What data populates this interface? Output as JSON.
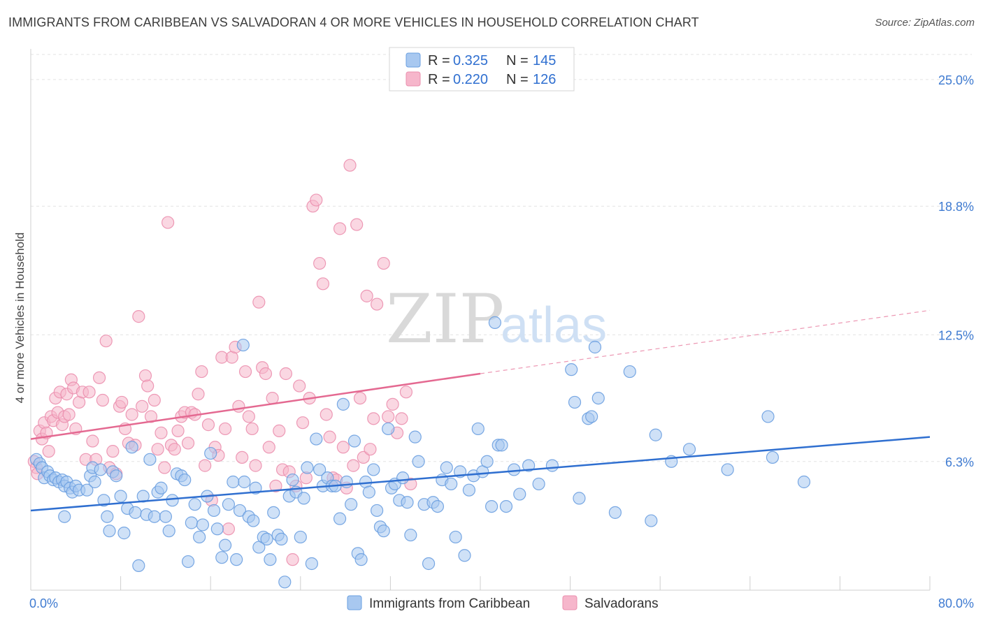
{
  "title": "IMMIGRANTS FROM CARIBBEAN VS SALVADORAN 4 OR MORE VEHICLES IN HOUSEHOLD CORRELATION CHART",
  "source": "Source: ZipAtlas.com",
  "watermark": {
    "zip": "ZIP",
    "atlas": "atlas"
  },
  "legend": {
    "rows": [
      {
        "r_label": "R =",
        "r_value": "0.325",
        "n_label": "N =",
        "n_value": "145",
        "color": "#a8c8f0"
      },
      {
        "r_label": "R =",
        "r_value": "0.220",
        "n_label": "N =",
        "n_value": "126",
        "color": "#f6b6cb"
      }
    ]
  },
  "chart_data": {
    "type": "scatter",
    "title": "IMMIGRANTS FROM CARIBBEAN VS SALVADORAN 4 OR MORE VEHICLES IN HOUSEHOLD CORRELATION CHART",
    "xlabel": "",
    "ylabel": "4 or more Vehicles in Household",
    "xlim": [
      0,
      80
    ],
    "ylim": [
      0,
      26.5
    ],
    "x_tick_labels": [
      "0.0%",
      "80.0%"
    ],
    "y_ticks": [
      6.3,
      12.5,
      18.8,
      25.0
    ],
    "y_tick_labels": [
      "6.3%",
      "12.5%",
      "18.8%",
      "25.0%"
    ],
    "grid": "horizontal dashed",
    "legend_placement": "top-center",
    "series": [
      {
        "name": "Immigrants from Caribbean",
        "color": "#6a9fe0",
        "fill": "#a8c8f0",
        "trend": {
          "x": [
            0,
            80
          ],
          "y": [
            3.9,
            7.5
          ],
          "color": "#2f6fd0"
        },
        "points": [
          [
            0.5,
            6.4
          ],
          [
            0.8,
            6.2
          ],
          [
            1.0,
            6.0
          ],
          [
            1.2,
            5.5
          ],
          [
            1.5,
            5.8
          ],
          [
            1.7,
            5.6
          ],
          [
            2.0,
            5.4
          ],
          [
            2.2,
            5.5
          ],
          [
            2.5,
            5.3
          ],
          [
            2.8,
            5.4
          ],
          [
            3.0,
            5.1
          ],
          [
            3.2,
            5.3
          ],
          [
            3.5,
            5.0
          ],
          [
            3.7,
            4.8
          ],
          [
            3.0,
            3.6
          ],
          [
            4.0,
            5.1
          ],
          [
            4.3,
            4.9
          ],
          [
            5.0,
            4.9
          ],
          [
            5.3,
            5.6
          ],
          [
            5.5,
            6.0
          ],
          [
            5.7,
            5.3
          ],
          [
            6.2,
            5.9
          ],
          [
            6.5,
            4.4
          ],
          [
            6.8,
            3.6
          ],
          [
            7.0,
            2.9
          ],
          [
            7.3,
            5.8
          ],
          [
            7.6,
            5.6
          ],
          [
            8.0,
            4.6
          ],
          [
            8.3,
            2.8
          ],
          [
            8.6,
            4.0
          ],
          [
            9.0,
            7.0
          ],
          [
            9.3,
            3.8
          ],
          [
            9.6,
            1.2
          ],
          [
            10.0,
            4.6
          ],
          [
            10.3,
            3.7
          ],
          [
            10.6,
            6.4
          ],
          [
            11.0,
            3.6
          ],
          [
            11.3,
            4.8
          ],
          [
            11.6,
            5.0
          ],
          [
            12.0,
            3.6
          ],
          [
            12.3,
            2.9
          ],
          [
            12.6,
            4.4
          ],
          [
            13.0,
            5.7
          ],
          [
            13.4,
            5.6
          ],
          [
            13.7,
            5.4
          ],
          [
            14.0,
            1.4
          ],
          [
            14.3,
            3.3
          ],
          [
            14.6,
            4.2
          ],
          [
            15.0,
            2.6
          ],
          [
            15.3,
            3.2
          ],
          [
            15.7,
            4.6
          ],
          [
            16.0,
            6.7
          ],
          [
            16.3,
            3.9
          ],
          [
            16.6,
            3.0
          ],
          [
            17.0,
            1.6
          ],
          [
            17.3,
            2.2
          ],
          [
            17.6,
            4.2
          ],
          [
            18.0,
            5.3
          ],
          [
            18.3,
            1.5
          ],
          [
            18.6,
            3.9
          ],
          [
            18.9,
            12.0
          ],
          [
            19.0,
            5.3
          ],
          [
            19.4,
            3.6
          ],
          [
            19.8,
            3.4
          ],
          [
            20.0,
            5.0
          ],
          [
            20.3,
            2.1
          ],
          [
            20.7,
            2.6
          ],
          [
            21.0,
            2.5
          ],
          [
            21.3,
            1.5
          ],
          [
            21.6,
            3.8
          ],
          [
            22.0,
            2.7
          ],
          [
            22.3,
            2.5
          ],
          [
            22.6,
            0.4
          ],
          [
            23.0,
            4.6
          ],
          [
            23.3,
            5.4
          ],
          [
            23.6,
            4.8
          ],
          [
            24.0,
            2.6
          ],
          [
            24.3,
            4.5
          ],
          [
            24.6,
            6.0
          ],
          [
            25.0,
            1.3
          ],
          [
            25.4,
            7.4
          ],
          [
            25.7,
            5.9
          ],
          [
            26.0,
            5.1
          ],
          [
            26.4,
            5.5
          ],
          [
            26.8,
            5.1
          ],
          [
            27.1,
            5.1
          ],
          [
            27.5,
            3.5
          ],
          [
            27.8,
            9.1
          ],
          [
            28.1,
            5.3
          ],
          [
            28.5,
            4.2
          ],
          [
            28.8,
            7.3
          ],
          [
            29.1,
            1.8
          ],
          [
            29.4,
            1.5
          ],
          [
            29.8,
            5.3
          ],
          [
            30.1,
            4.8
          ],
          [
            30.5,
            5.9
          ],
          [
            30.8,
            3.9
          ],
          [
            31.1,
            3.1
          ],
          [
            31.4,
            2.9
          ],
          [
            31.8,
            7.9
          ],
          [
            32.1,
            5.0
          ],
          [
            32.4,
            5.2
          ],
          [
            32.8,
            4.4
          ],
          [
            33.1,
            5.5
          ],
          [
            33.5,
            4.3
          ],
          [
            33.8,
            2.7
          ],
          [
            34.2,
            7.5
          ],
          [
            34.5,
            6.3
          ],
          [
            35.0,
            4.2
          ],
          [
            35.4,
            1.3
          ],
          [
            35.8,
            4.3
          ],
          [
            36.2,
            4.1
          ],
          [
            36.6,
            5.4
          ],
          [
            37.0,
            6.0
          ],
          [
            37.4,
            5.2
          ],
          [
            37.8,
            2.6
          ],
          [
            38.2,
            5.8
          ],
          [
            38.6,
            1.7
          ],
          [
            39.0,
            4.9
          ],
          [
            39.4,
            5.6
          ],
          [
            39.8,
            7.9
          ],
          [
            40.2,
            5.8
          ],
          [
            40.6,
            6.3
          ],
          [
            41.0,
            4.1
          ],
          [
            41.3,
            13.1
          ],
          [
            41.6,
            7.1
          ],
          [
            41.9,
            7.1
          ],
          [
            42.3,
            4.1
          ],
          [
            43.0,
            5.9
          ],
          [
            43.5,
            4.7
          ],
          [
            44.3,
            6.1
          ],
          [
            45.2,
            5.2
          ],
          [
            46.4,
            6.1
          ],
          [
            48.1,
            10.8
          ],
          [
            48.4,
            9.2
          ],
          [
            48.8,
            4.5
          ],
          [
            49.6,
            8.4
          ],
          [
            49.9,
            8.5
          ],
          [
            50.2,
            11.9
          ],
          [
            50.5,
            9.4
          ],
          [
            52.0,
            3.8
          ],
          [
            53.3,
            10.7
          ],
          [
            55.2,
            3.4
          ],
          [
            55.6,
            7.6
          ],
          [
            57.0,
            6.3
          ],
          [
            58.6,
            6.9
          ],
          [
            62.0,
            5.9
          ],
          [
            65.6,
            8.5
          ],
          [
            66.0,
            6.5
          ],
          [
            68.8,
            5.3
          ]
        ]
      },
      {
        "name": "Salvadorans",
        "color": "#eb8fae",
        "fill": "#f6b6cb",
        "trend": {
          "x": [
            0,
            40
          ],
          "y": [
            7.4,
            10.6
          ],
          "color": "#e46991",
          "dashed_to": [
            80,
            13.7
          ]
        },
        "points": [
          [
            0.3,
            6.3
          ],
          [
            0.5,
            6.0
          ],
          [
            0.6,
            5.7
          ],
          [
            0.8,
            7.8
          ],
          [
            1.0,
            7.4
          ],
          [
            1.2,
            8.2
          ],
          [
            1.4,
            7.7
          ],
          [
            1.6,
            6.8
          ],
          [
            1.8,
            8.5
          ],
          [
            2.0,
            8.3
          ],
          [
            2.2,
            9.4
          ],
          [
            2.4,
            8.7
          ],
          [
            2.6,
            9.7
          ],
          [
            2.8,
            8.1
          ],
          [
            3.0,
            8.5
          ],
          [
            3.2,
            9.6
          ],
          [
            3.4,
            8.6
          ],
          [
            3.6,
            10.3
          ],
          [
            3.8,
            9.9
          ],
          [
            4.0,
            7.9
          ],
          [
            4.3,
            9.2
          ],
          [
            4.6,
            9.7
          ],
          [
            4.9,
            6.4
          ],
          [
            5.2,
            9.7
          ],
          [
            5.5,
            7.3
          ],
          [
            5.8,
            6.4
          ],
          [
            6.1,
            10.4
          ],
          [
            6.4,
            9.3
          ],
          [
            6.7,
            12.2
          ],
          [
            7.0,
            6.0
          ],
          [
            7.3,
            6.8
          ],
          [
            7.6,
            5.7
          ],
          [
            7.9,
            9.0
          ],
          [
            8.1,
            9.2
          ],
          [
            8.4,
            7.9
          ],
          [
            8.7,
            7.2
          ],
          [
            9.0,
            8.6
          ],
          [
            9.3,
            7.1
          ],
          [
            9.6,
            13.4
          ],
          [
            9.9,
            9.0
          ],
          [
            10.2,
            10.5
          ],
          [
            10.4,
            10.0
          ],
          [
            10.7,
            8.5
          ],
          [
            11.0,
            9.3
          ],
          [
            11.3,
            6.9
          ],
          [
            11.6,
            7.7
          ],
          [
            11.9,
            6.0
          ],
          [
            12.2,
            18.0
          ],
          [
            12.5,
            7.1
          ],
          [
            12.8,
            6.9
          ],
          [
            13.1,
            7.8
          ],
          [
            13.4,
            8.5
          ],
          [
            13.7,
            8.7
          ],
          [
            14.0,
            7.2
          ],
          [
            14.3,
            8.7
          ],
          [
            14.6,
            8.6
          ],
          [
            14.9,
            9.6
          ],
          [
            15.2,
            10.7
          ],
          [
            15.5,
            6.1
          ],
          [
            15.8,
            8.1
          ],
          [
            16.1,
            4.4
          ],
          [
            16.4,
            7.0
          ],
          [
            16.7,
            6.6
          ],
          [
            17.0,
            11.4
          ],
          [
            17.3,
            7.9
          ],
          [
            17.6,
            3.0
          ],
          [
            17.9,
            11.4
          ],
          [
            18.2,
            11.9
          ],
          [
            18.5,
            9.0
          ],
          [
            18.8,
            6.5
          ],
          [
            19.1,
            10.7
          ],
          [
            19.4,
            8.5
          ],
          [
            19.7,
            7.9
          ],
          [
            20.0,
            6.1
          ],
          [
            20.3,
            14.1
          ],
          [
            20.6,
            10.9
          ],
          [
            20.9,
            10.6
          ],
          [
            21.2,
            7.0
          ],
          [
            21.5,
            9.4
          ],
          [
            21.8,
            5.1
          ],
          [
            22.1,
            7.8
          ],
          [
            22.4,
            5.9
          ],
          [
            22.7,
            10.6
          ],
          [
            23.0,
            5.8
          ],
          [
            23.3,
            1.5
          ],
          [
            23.6,
            5.1
          ],
          [
            23.9,
            10.0
          ],
          [
            24.2,
            8.2
          ],
          [
            24.5,
            5.5
          ],
          [
            24.8,
            9.4
          ],
          [
            25.1,
            18.8
          ],
          [
            25.4,
            19.1
          ],
          [
            25.7,
            16.0
          ],
          [
            26.0,
            15.0
          ],
          [
            26.3,
            8.6
          ],
          [
            26.6,
            7.5
          ],
          [
            26.9,
            5.5
          ],
          [
            27.2,
            5.4
          ],
          [
            27.5,
            17.7
          ],
          [
            27.8,
            7.0
          ],
          [
            28.1,
            5.0
          ],
          [
            28.4,
            20.8
          ],
          [
            28.7,
            6.1
          ],
          [
            29.0,
            17.9
          ],
          [
            29.3,
            9.4
          ],
          [
            29.6,
            6.5
          ],
          [
            29.9,
            14.4
          ],
          [
            30.2,
            6.9
          ],
          [
            30.5,
            8.4
          ],
          [
            30.8,
            14.0
          ],
          [
            31.4,
            16.0
          ],
          [
            31.8,
            8.5
          ],
          [
            32.2,
            9.1
          ],
          [
            32.6,
            7.7
          ],
          [
            33.0,
            8.4
          ],
          [
            33.4,
            9.7
          ],
          [
            33.8,
            5.2
          ]
        ]
      }
    ]
  },
  "bottom_legend": [
    {
      "label": "Immigrants from Caribbean",
      "color": "#a8c8f0"
    },
    {
      "label": "Salvadorans",
      "color": "#f6b6cb"
    }
  ]
}
